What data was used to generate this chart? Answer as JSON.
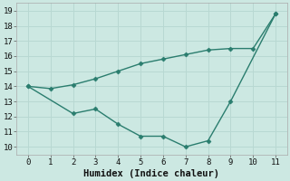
{
  "line1_x": [
    0,
    1,
    2,
    3,
    4,
    5,
    6,
    7,
    8,
    9,
    10,
    11
  ],
  "line1_y": [
    14.0,
    13.85,
    14.1,
    14.5,
    15.0,
    15.5,
    15.8,
    16.1,
    16.4,
    16.5,
    16.5,
    18.8
  ],
  "line2_x": [
    0,
    2,
    3,
    4,
    5,
    6,
    7,
    8,
    9,
    11
  ],
  "line2_y": [
    14.0,
    12.2,
    12.5,
    11.5,
    10.7,
    10.7,
    10.0,
    10.4,
    13.0,
    18.8
  ],
  "line_color": "#2a7d6e",
  "bg_color": "#cce8e2",
  "grid_color": "#b8d8d2",
  "xlabel": "Humidex (Indice chaleur)",
  "xlim": [
    -0.5,
    11.5
  ],
  "ylim": [
    9.5,
    19.5
  ],
  "yticks": [
    10,
    11,
    12,
    13,
    14,
    15,
    16,
    17,
    18,
    19
  ],
  "xticks": [
    0,
    1,
    2,
    3,
    4,
    5,
    6,
    7,
    8,
    9,
    10,
    11
  ],
  "marker": "D",
  "marker_size": 2.5,
  "line_width": 1.0,
  "xlabel_fontsize": 7.5,
  "tick_fontsize": 6.5,
  "tick_font": "monospace"
}
